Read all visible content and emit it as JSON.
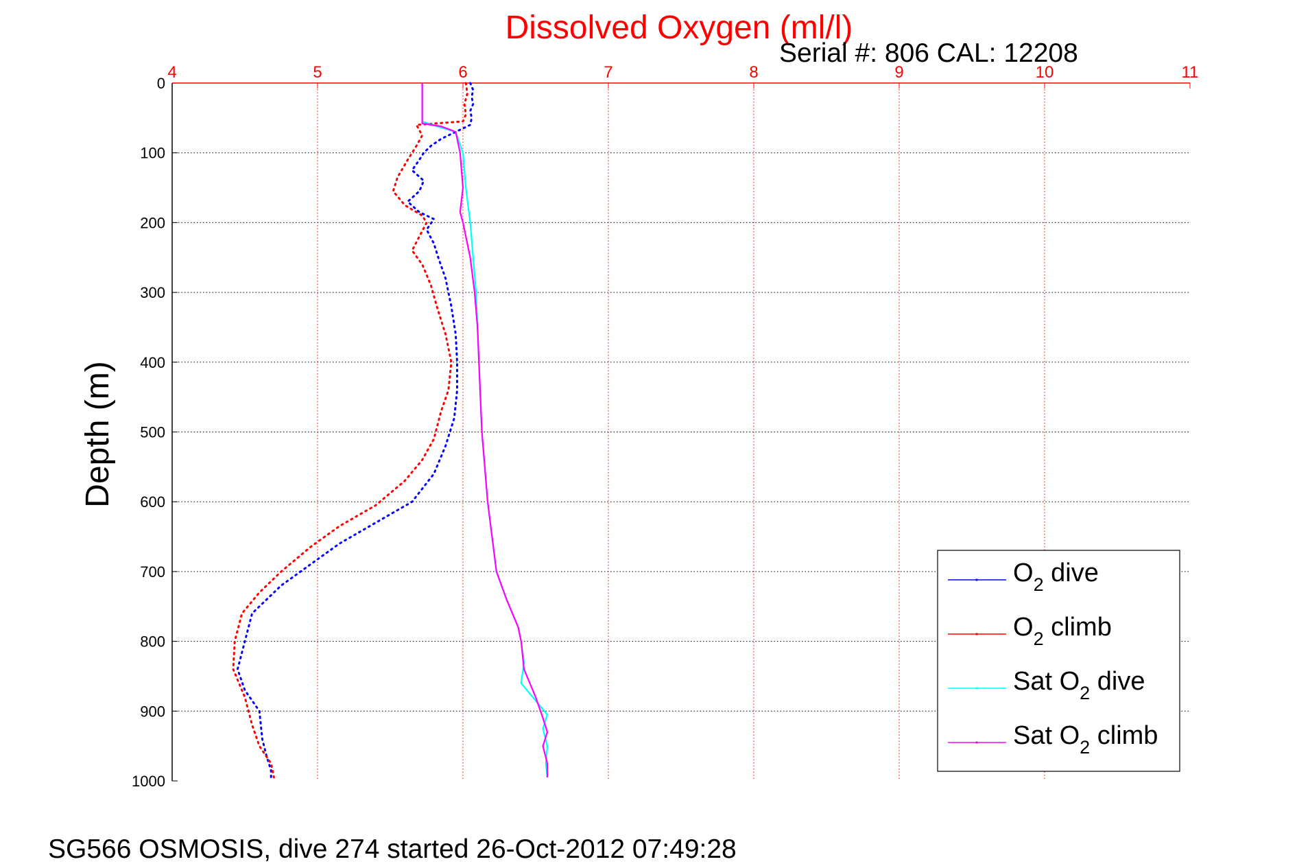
{
  "chart_data": {
    "type": "line",
    "title": "Dissolved Oxygen (ml/l)",
    "serial_text": "Serial #: 806  CAL: 12208",
    "ylabel": "Depth (m)",
    "xlabel": "",
    "footer": "SG566 OSMOSIS, dive 274 started 26-Oct-2012 07:49:28",
    "x_axis_position": "top",
    "y_reversed": true,
    "xlim": [
      4,
      11
    ],
    "ylim": [
      0,
      1000
    ],
    "xticks": [
      "4",
      "5",
      "6",
      "7",
      "8",
      "9",
      "10",
      "11"
    ],
    "yticks": [
      "0",
      "100",
      "200",
      "300",
      "400",
      "500",
      "600",
      "700",
      "800",
      "900",
      "1000"
    ],
    "grid": true,
    "legend_position": "bottom-right",
    "colors": {
      "axis_x": "#ff0000",
      "grid_x": "#ff0000",
      "grid_y": "#000000"
    },
    "series": [
      {
        "name": "O2 dive",
        "legend": {
          "prefix": "O",
          "sub": "2",
          "suffix": " dive"
        },
        "color": "#0000ff",
        "style": "dotted",
        "points": [
          [
            6.05,
            0
          ],
          [
            6.07,
            10
          ],
          [
            6.06,
            20
          ],
          [
            6.07,
            30
          ],
          [
            6.05,
            40
          ],
          [
            6.06,
            50
          ],
          [
            6.05,
            60
          ],
          [
            5.95,
            70
          ],
          [
            5.85,
            80
          ],
          [
            5.78,
            90
          ],
          [
            5.73,
            100
          ],
          [
            5.7,
            110
          ],
          [
            5.65,
            125
          ],
          [
            5.73,
            140
          ],
          [
            5.7,
            155
          ],
          [
            5.62,
            170
          ],
          [
            5.7,
            185
          ],
          [
            5.8,
            195
          ],
          [
            5.75,
            210
          ],
          [
            5.8,
            230
          ],
          [
            5.83,
            250
          ],
          [
            5.88,
            280
          ],
          [
            5.92,
            320
          ],
          [
            5.95,
            360
          ],
          [
            5.96,
            400
          ],
          [
            5.96,
            440
          ],
          [
            5.94,
            480
          ],
          [
            5.88,
            520
          ],
          [
            5.8,
            560
          ],
          [
            5.65,
            600
          ],
          [
            5.4,
            630
          ],
          [
            5.15,
            660
          ],
          [
            4.95,
            690
          ],
          [
            4.75,
            720
          ],
          [
            4.55,
            760
          ],
          [
            4.5,
            800
          ],
          [
            4.45,
            840
          ],
          [
            4.5,
            870
          ],
          [
            4.6,
            900
          ],
          [
            4.62,
            940
          ],
          [
            4.65,
            965
          ],
          [
            4.68,
            985
          ],
          [
            4.68,
            995
          ]
        ]
      },
      {
        "name": "O2 climb",
        "legend": {
          "prefix": "O",
          "sub": "2",
          "suffix": " climb"
        },
        "color": "#ff0000",
        "style": "dotted",
        "points": [
          [
            6.02,
            0
          ],
          [
            6.03,
            15
          ],
          [
            6.01,
            30
          ],
          [
            6.02,
            45
          ],
          [
            6.0,
            55
          ],
          [
            5.68,
            60
          ],
          [
            5.72,
            75
          ],
          [
            5.68,
            90
          ],
          [
            5.62,
            110
          ],
          [
            5.55,
            135
          ],
          [
            5.52,
            155
          ],
          [
            5.6,
            175
          ],
          [
            5.72,
            190
          ],
          [
            5.75,
            200
          ],
          [
            5.7,
            220
          ],
          [
            5.65,
            240
          ],
          [
            5.72,
            260
          ],
          [
            5.78,
            290
          ],
          [
            5.82,
            320
          ],
          [
            5.88,
            360
          ],
          [
            5.92,
            400
          ],
          [
            5.9,
            440
          ],
          [
            5.85,
            470
          ],
          [
            5.8,
            510
          ],
          [
            5.72,
            540
          ],
          [
            5.6,
            570
          ],
          [
            5.4,
            605
          ],
          [
            5.15,
            635
          ],
          [
            4.95,
            665
          ],
          [
            4.75,
            700
          ],
          [
            4.6,
            730
          ],
          [
            4.48,
            760
          ],
          [
            4.43,
            800
          ],
          [
            4.42,
            840
          ],
          [
            4.5,
            880
          ],
          [
            4.55,
            920
          ],
          [
            4.6,
            950
          ],
          [
            4.68,
            975
          ],
          [
            4.7,
            995
          ]
        ]
      },
      {
        "name": "Sat O2 dive",
        "legend": {
          "prefix": "Sat O",
          "sub": "2",
          "suffix": " dive"
        },
        "color": "#00ffff",
        "style": "solid",
        "points": [
          [
            5.72,
            0
          ],
          [
            5.72,
            55
          ],
          [
            5.82,
            62
          ],
          [
            5.95,
            70
          ],
          [
            6.0,
            100
          ],
          [
            6.02,
            150
          ],
          [
            6.05,
            200
          ],
          [
            6.07,
            250
          ],
          [
            6.09,
            300
          ],
          [
            6.1,
            350
          ],
          [
            6.11,
            400
          ],
          [
            6.12,
            450
          ],
          [
            6.13,
            500
          ],
          [
            6.15,
            550
          ],
          [
            6.17,
            600
          ],
          [
            6.2,
            650
          ],
          [
            6.23,
            700
          ],
          [
            6.3,
            740
          ],
          [
            6.38,
            780
          ],
          [
            6.4,
            800
          ],
          [
            6.42,
            830
          ],
          [
            6.4,
            860
          ],
          [
            6.48,
            880
          ],
          [
            6.58,
            905
          ],
          [
            6.55,
            925
          ],
          [
            6.58,
            950
          ],
          [
            6.57,
            975
          ],
          [
            6.58,
            995
          ]
        ]
      },
      {
        "name": "Sat O2 climb",
        "legend": {
          "prefix": "Sat O",
          "sub": "2",
          "suffix": " climb"
        },
        "color": "#ff00ff",
        "style": "solid",
        "points": [
          [
            5.72,
            0
          ],
          [
            5.72,
            58
          ],
          [
            5.85,
            62
          ],
          [
            5.95,
            70
          ],
          [
            5.98,
            100
          ],
          [
            6.0,
            150
          ],
          [
            5.98,
            185
          ],
          [
            6.0,
            200
          ],
          [
            6.05,
            250
          ],
          [
            6.08,
            300
          ],
          [
            6.1,
            350
          ],
          [
            6.11,
            400
          ],
          [
            6.12,
            450
          ],
          [
            6.13,
            500
          ],
          [
            6.15,
            550
          ],
          [
            6.17,
            600
          ],
          [
            6.2,
            650
          ],
          [
            6.23,
            700
          ],
          [
            6.3,
            740
          ],
          [
            6.38,
            780
          ],
          [
            6.4,
            800
          ],
          [
            6.42,
            840
          ],
          [
            6.5,
            880
          ],
          [
            6.55,
            910
          ],
          [
            6.58,
            930
          ],
          [
            6.55,
            950
          ],
          [
            6.58,
            975
          ],
          [
            6.58,
            995
          ]
        ]
      }
    ]
  }
}
